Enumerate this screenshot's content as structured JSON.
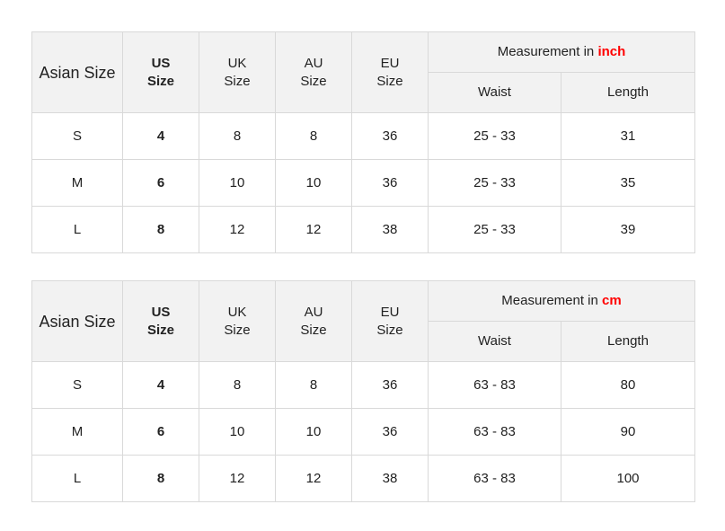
{
  "headers": {
    "asian": "Asian Size",
    "us": [
      "US",
      "Size"
    ],
    "uk": [
      "UK",
      "Size"
    ],
    "au": [
      "AU",
      "Size"
    ],
    "eu": [
      "EU",
      "Size"
    ],
    "measurement_prefix": "Measurement in ",
    "waist": "Waist",
    "length": "Length"
  },
  "accent_color": "#ff0000",
  "tables": [
    {
      "unit": "inch",
      "rows": [
        {
          "asian": "S",
          "us": "4",
          "uk": "8",
          "au": "8",
          "eu": "36",
          "waist": "25  - 33",
          "length": "31"
        },
        {
          "asian": "M",
          "us": "6",
          "uk": "10",
          "au": "10",
          "eu": "36",
          "waist": "25  - 33",
          "length": "35"
        },
        {
          "asian": "L",
          "us": "8",
          "uk": "12",
          "au": "12",
          "eu": "38",
          "waist": "25  - 33",
          "length": "39"
        }
      ]
    },
    {
      "unit": "cm",
      "rows": [
        {
          "asian": "S",
          "us": "4",
          "uk": "8",
          "au": "8",
          "eu": "36",
          "waist": "63  - 83",
          "length": "80"
        },
        {
          "asian": "M",
          "us": "6",
          "uk": "10",
          "au": "10",
          "eu": "36",
          "waist": "63  - 83",
          "length": "90"
        },
        {
          "asian": "L",
          "us": "8",
          "uk": "12",
          "au": "12",
          "eu": "38",
          "waist": "63  - 83",
          "length": "100"
        }
      ]
    }
  ]
}
